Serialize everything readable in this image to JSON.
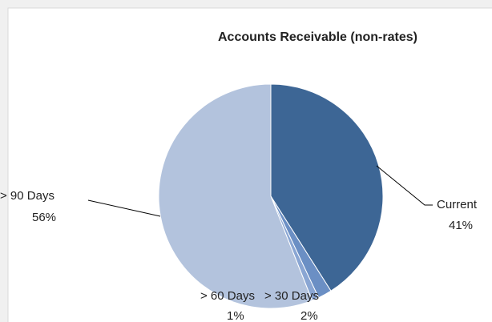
{
  "chart_data": {
    "type": "pie",
    "title": "Accounts Receivable (non-rates)",
    "categories": [
      "Current",
      "> 30 Days",
      "> 60 Days",
      "> 90 Days"
    ],
    "values": [
      41,
      2,
      1,
      56
    ],
    "value_labels": [
      "41%",
      "2%",
      "1%",
      "56%"
    ],
    "colors": [
      "#3d6695",
      "#6b8fc4",
      "#8aa6d3",
      "#b3c3dd"
    ]
  }
}
